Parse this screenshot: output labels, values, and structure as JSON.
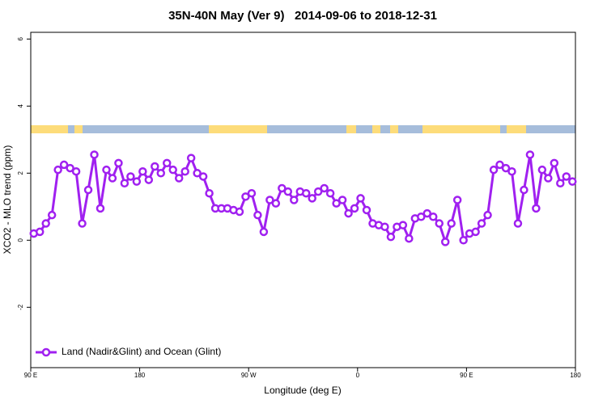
{
  "chart_data": {
    "type": "line",
    "title": "35N-40N May (Ver 9)   2014-09-06 to 2018-12-31",
    "x_label": "Longitude (deg E)",
    "y_label": "XCO2 - MLO trend (ppm)",
    "x": [
      92.5,
      97.5,
      102.5,
      107.5,
      112.5,
      117.5,
      122.5,
      127.5,
      132.5,
      137.5,
      142.5,
      147.5,
      152.5,
      157.5,
      162.5,
      167.5,
      172.5,
      177.5,
      182.5,
      187.5,
      192.5,
      197.5,
      202.5,
      207.5,
      212.5,
      217.5,
      222.5,
      227.5,
      232.5,
      237.5,
      242.5,
      247.5,
      252.5,
      257.5,
      262.5,
      267.5,
      272.5,
      277.5,
      282.5,
      287.5,
      292.5,
      297.5,
      302.5,
      307.5,
      312.5,
      317.5,
      322.5,
      327.5,
      332.5,
      337.5,
      342.5,
      347.5,
      352.5,
      357.5,
      362.5,
      367.5,
      372.5,
      377.5,
      382.5,
      387.5,
      392.5,
      397.5,
      402.5,
      407.5,
      412.5,
      417.5,
      422.5,
      427.5,
      432.5,
      437.5,
      442.5,
      447.5,
      452.5,
      457.5,
      462.5,
      467.5,
      472.5,
      477.5,
      482.5,
      487.5,
      492.5,
      497.5,
      502.5,
      507.5,
      512.5,
      517.5,
      522.5,
      527.5,
      532.5,
      537.5
    ],
    "series": [
      {
        "name": "Land (Nadir&Glint) and Ocean (Glint)",
        "color": "#a020f0",
        "values": [
          0.2,
          0.25,
          0.5,
          0.75,
          2.1,
          2.25,
          2.15,
          2.05,
          0.5,
          1.5,
          2.55,
          0.95,
          2.1,
          1.85,
          2.3,
          1.7,
          1.9,
          1.75,
          2.05,
          1.8,
          2.2,
          2.0,
          2.3,
          2.1,
          1.85,
          2.05,
          2.45,
          2.0,
          1.9,
          1.4,
          0.95,
          0.95,
          0.95,
          0.9,
          0.85,
          1.3,
          1.4,
          0.75,
          0.25,
          1.2,
          1.1,
          1.55,
          1.45,
          1.2,
          1.45,
          1.4,
          1.25,
          1.45,
          1.55,
          1.4,
          1.1,
          1.2,
          0.8,
          0.95,
          1.25,
          0.9,
          0.5,
          0.45,
          0.4,
          0.1,
          0.4,
          0.45,
          0.05,
          0.65,
          0.7,
          0.8,
          0.7,
          0.5,
          -0.05,
          0.5,
          1.2,
          0.0,
          0.2,
          0.25,
          0.5,
          0.75,
          2.1,
          2.25,
          2.15,
          2.05,
          0.5,
          1.5,
          2.55,
          0.95,
          2.1,
          1.85,
          2.3,
          1.7,
          1.9,
          1.75
        ]
      }
    ],
    "xlim": [
      90,
      540
    ],
    "xticks": [
      {
        "value": 90,
        "label": "90 E"
      },
      180,
      {
        "value": 270,
        "label": "90 W"
      },
      {
        "value": 360,
        "label": "0"
      },
      {
        "value": 450,
        "label": "90 E"
      },
      {
        "value": 540,
        "label": "180"
      }
    ],
    "ylim": [
      -3.8,
      6.2
    ],
    "yticks": [
      -2,
      0,
      2,
      4,
      6
    ],
    "legend": "bottom-left"
  }
}
